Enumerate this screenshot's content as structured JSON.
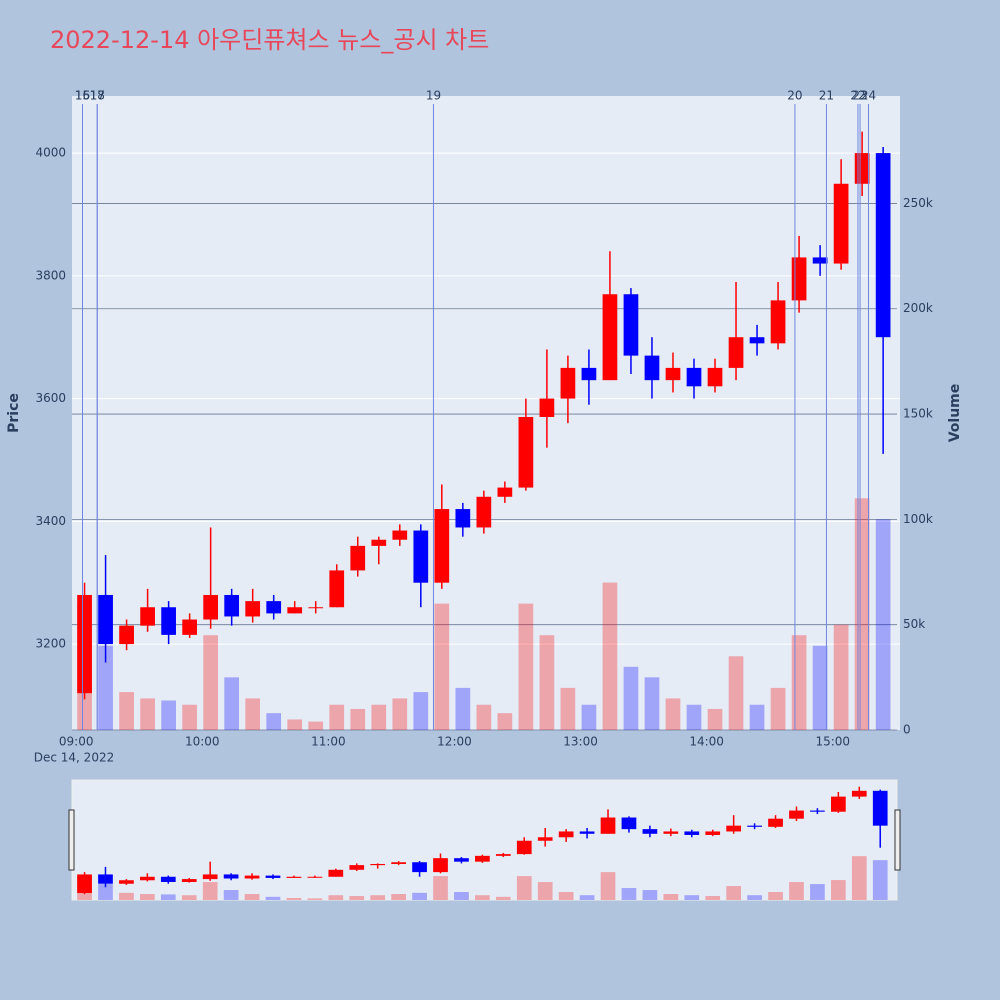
{
  "chart_data": {
    "type": "candlestick",
    "title": "2022-12-14 아우딘퓨쳐스 뉴스_공시 차트",
    "x": [
      "09:00",
      "09:10",
      "09:20",
      "09:30",
      "09:40",
      "09:50",
      "10:00",
      "10:10",
      "10:20",
      "10:30",
      "10:40",
      "10:50",
      "11:00",
      "11:10",
      "11:20",
      "11:30",
      "11:40",
      "11:50",
      "12:00",
      "12:10",
      "12:20",
      "12:30",
      "12:40",
      "12:50",
      "13:00",
      "13:10",
      "13:20",
      "13:30",
      "13:40",
      "13:50",
      "14:00",
      "14:10",
      "14:20",
      "14:30",
      "14:40",
      "14:50",
      "15:00",
      "15:10",
      "15:20"
    ],
    "open": [
      3120,
      3280,
      3200,
      3230,
      3260,
      3215,
      3240,
      3280,
      3245,
      3270,
      3250,
      3260,
      3260,
      3320,
      3360,
      3370,
      3385,
      3300,
      3420,
      3390,
      3440,
      3455,
      3570,
      3600,
      3650,
      3630,
      3770,
      3670,
      3630,
      3650,
      3620,
      3650,
      3700,
      3690,
      3760,
      3830,
      3820,
      3950,
      4000
    ],
    "high": [
      3300,
      3345,
      3240,
      3290,
      3270,
      3250,
      3390,
      3290,
      3290,
      3280,
      3270,
      3270,
      3330,
      3375,
      3375,
      3395,
      3395,
      3460,
      3430,
      3450,
      3465,
      3600,
      3680,
      3670,
      3680,
      3840,
      3780,
      3700,
      3675,
      3665,
      3665,
      3790,
      3720,
      3790,
      3865,
      3850,
      3990,
      4035,
      4010
    ],
    "low": [
      3110,
      3170,
      3190,
      3220,
      3200,
      3210,
      3225,
      3230,
      3235,
      3240,
      3250,
      3250,
      3260,
      3310,
      3330,
      3360,
      3260,
      3290,
      3375,
      3380,
      3430,
      3450,
      3520,
      3560,
      3590,
      3630,
      3640,
      3600,
      3610,
      3600,
      3610,
      3630,
      3670,
      3680,
      3740,
      3800,
      3810,
      3930,
      3510
    ],
    "close": [
      3280,
      3200,
      3230,
      3260,
      3215,
      3240,
      3280,
      3245,
      3270,
      3250,
      3260,
      3260,
      3320,
      3360,
      3370,
      3385,
      3300,
      3420,
      3390,
      3440,
      3455,
      3570,
      3600,
      3650,
      3630,
      3770,
      3670,
      3630,
      3650,
      3620,
      3650,
      3700,
      3690,
      3760,
      3830,
      3820,
      3950,
      4000,
      3700
    ],
    "volume": [
      60000,
      40000,
      18000,
      15000,
      14000,
      12000,
      45000,
      25000,
      15000,
      8000,
      5000,
      4000,
      12000,
      10000,
      12000,
      15000,
      18000,
      60000,
      20000,
      12000,
      8000,
      60000,
      45000,
      20000,
      12000,
      70000,
      30000,
      25000,
      15000,
      12000,
      10000,
      35000,
      12000,
      20000,
      45000,
      40000,
      50000,
      110000,
      100000
    ],
    "increasing_color": "#ff0000",
    "decreasing_color": "#0000ff",
    "xlim": [
      "08:58",
      "15:32"
    ],
    "xticks": [
      "09:00",
      "10:00",
      "11:00",
      "12:00",
      "13:00",
      "14:00",
      "15:00"
    ],
    "x_date_label": "Dec 14, 2022",
    "ylim": [
      3060,
      4093
    ],
    "yticks": [
      3200,
      3400,
      3600,
      3800,
      4000
    ],
    "y_label": "Price",
    "y2lim": [
      0,
      301000
    ],
    "y2ticks": [
      0,
      {
        "value": 50000,
        "label": "50k"
      },
      {
        "value": 100000,
        "label": "100k"
      },
      {
        "value": 150000,
        "label": "150k"
      },
      {
        "value": 200000,
        "label": "200k"
      },
      {
        "value": 250000,
        "label": "250k"
      }
    ],
    "y2_label": "Volume",
    "markers": [
      {
        "label": "15",
        "x": "09:03"
      },
      {
        "label": "16",
        "x": "09:03"
      },
      {
        "label": "17",
        "x": "09:10"
      },
      {
        "label": "18",
        "x": "09:10"
      },
      {
        "label": "19",
        "x": "11:50"
      },
      {
        "label": "20",
        "x": "14:42"
      },
      {
        "label": "21",
        "x": "14:57"
      },
      {
        "label": "22",
        "x": "15:12"
      },
      {
        "label": "23",
        "x": "15:13"
      },
      {
        "label": "24",
        "x": "15:17"
      }
    ],
    "rangeslider": true
  }
}
